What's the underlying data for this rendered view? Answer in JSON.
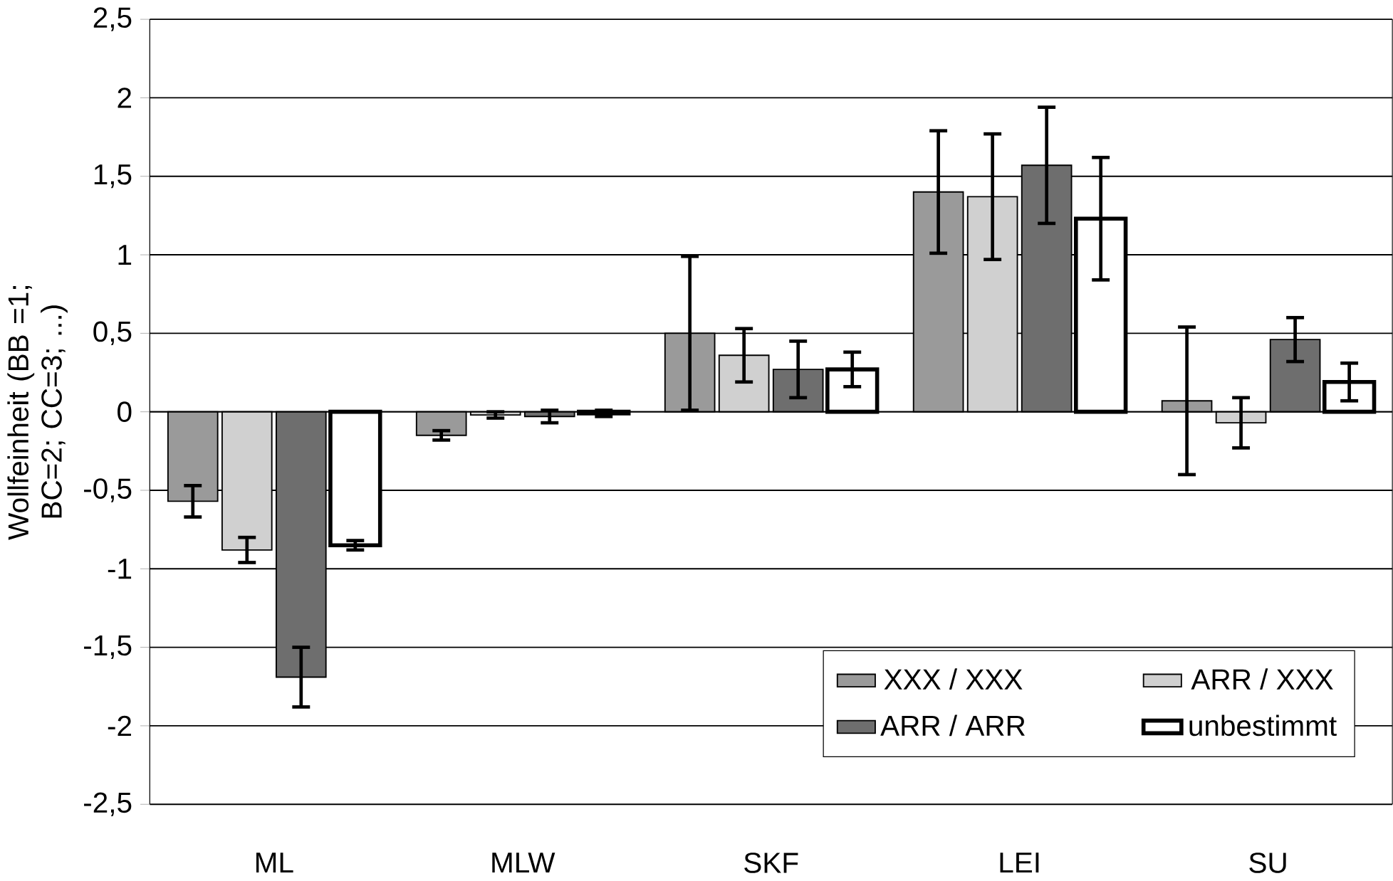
{
  "chart_data": {
    "type": "bar",
    "ylabel": "Wollfeinheit (BB =1; BC=2; CC=3; ...)",
    "categories": [
      "ML",
      "MLW",
      "SKF",
      "LEI",
      "SU"
    ],
    "series": [
      {
        "name": "XXX / XXX",
        "color": "#9a9a9a",
        "values": [
          -0.57,
          -0.15,
          0.5,
          1.4,
          0.07
        ],
        "errors": [
          0.1,
          0.03,
          0.49,
          0.39,
          0.47
        ]
      },
      {
        "name": "ARR / XXX",
        "color": "#d0d0d0",
        "values": [
          -0.88,
          -0.02,
          0.36,
          1.37,
          -0.07
        ],
        "errors": [
          0.08,
          0.02,
          0.17,
          0.4,
          0.16
        ]
      },
      {
        "name": "ARR / ARR",
        "color": "#6e6e6e",
        "values": [
          -1.69,
          -0.03,
          0.27,
          1.57,
          0.46
        ],
        "errors": [
          0.19,
          0.04,
          0.18,
          0.37,
          0.14
        ]
      },
      {
        "name": "unbestimmt",
        "color": "#ffffff",
        "values": [
          -0.85,
          -0.01,
          0.27,
          1.23,
          0.19
        ],
        "errors": [
          0.03,
          0.02,
          0.11,
          0.39,
          0.12
        ]
      }
    ],
    "ylim": [
      -2.5,
      2.5
    ],
    "yticks": [
      {
        "value": -2.5,
        "label": "-2,5"
      },
      -2,
      {
        "value": -1.5,
        "label": "-1,5"
      },
      -1,
      {
        "value": -0.5,
        "label": "-0,5"
      },
      0,
      {
        "value": 0.5,
        "label": "0,5"
      },
      1,
      {
        "value": 1.5,
        "label": "1,5"
      },
      2,
      {
        "value": 2.5,
        "label": "2,5"
      }
    ],
    "grid": "y",
    "legend": "bottom right"
  }
}
